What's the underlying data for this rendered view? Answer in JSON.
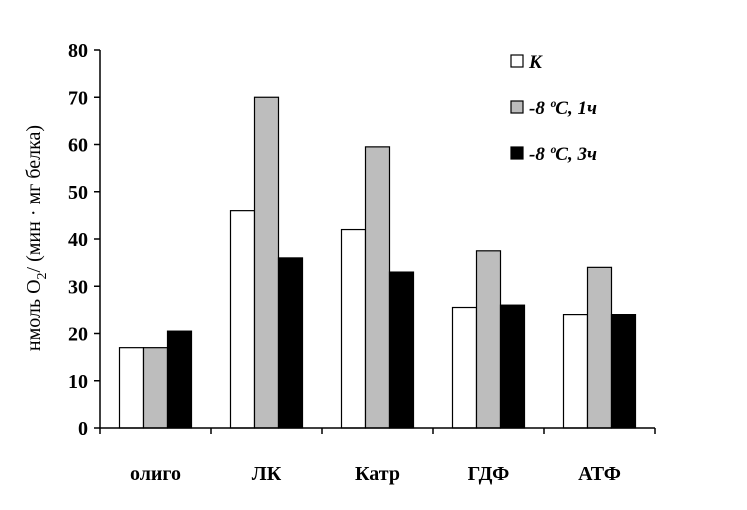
{
  "chart_data": {
    "type": "bar",
    "title": "",
    "xlabel": "",
    "ylabel": {
      "prefix": "нмоль O",
      "subscript": "2",
      "suffix": "/ (мин · мг белка)"
    },
    "ylim": [
      0,
      80
    ],
    "yticks": [
      0,
      10,
      20,
      30,
      40,
      50,
      60,
      70,
      80
    ],
    "grid": false,
    "legend_position": "top-right",
    "categories": [
      "олиго",
      "ЛК",
      "Катр",
      "ГДФ",
      "АТФ"
    ],
    "series": [
      {
        "name": "К",
        "color": "#ffffff",
        "values": [
          17,
          46,
          42,
          25.5,
          24
        ]
      },
      {
        "name": "-8 ºС, 1ч",
        "color": "#bdbdbd",
        "values": [
          17,
          70,
          59.5,
          37.5,
          34
        ]
      },
      {
        "name": "-8 ºС, 3ч",
        "color": "#000000",
        "values": [
          20.5,
          36,
          33,
          26,
          24
        ]
      }
    ]
  }
}
